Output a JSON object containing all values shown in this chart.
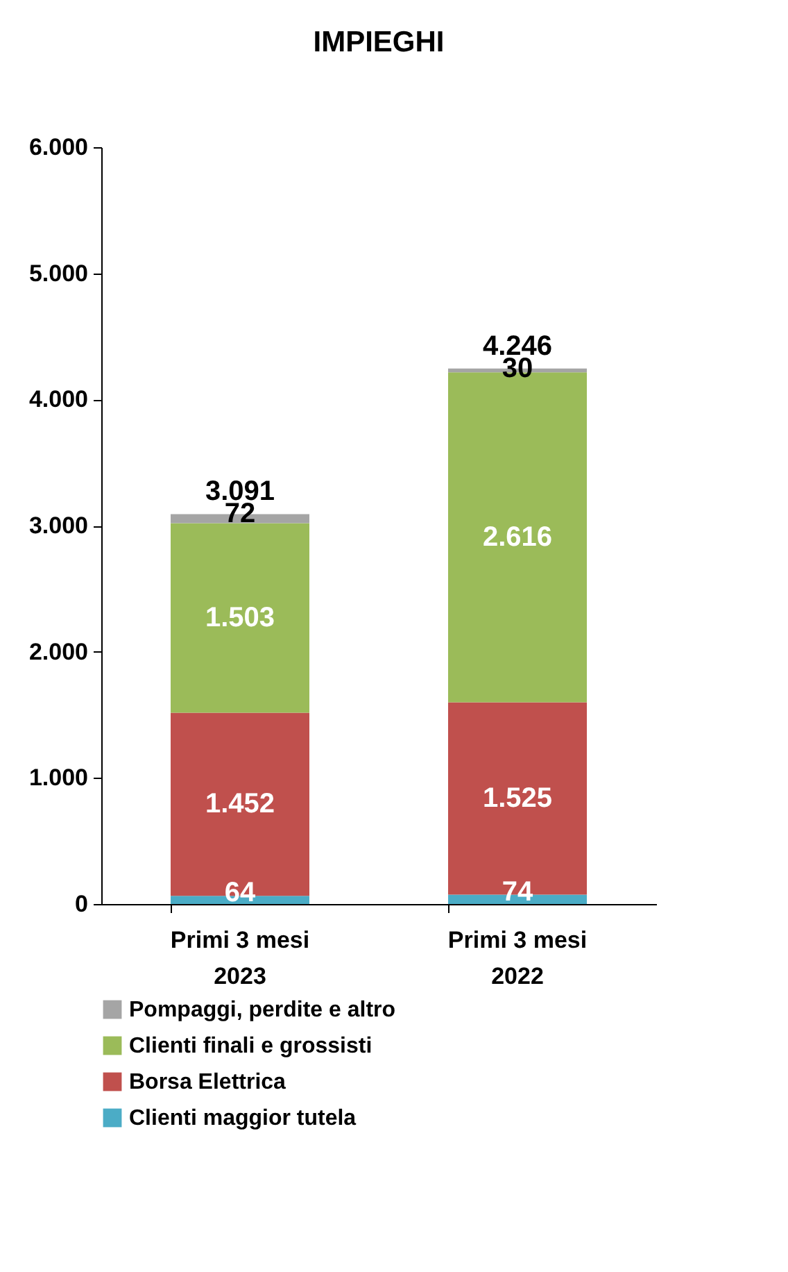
{
  "chart_data": {
    "type": "bar",
    "title": "IMPIEGHI",
    "stacked": true,
    "categories": [
      "Primi 3 mesi\n2023",
      "Primi 3 mesi\n2022"
    ],
    "series": [
      {
        "name": "Clienti maggior tutela",
        "color": "#4bacc6",
        "values": [
          64,
          74
        ],
        "value_labels": [
          "64",
          "74"
        ]
      },
      {
        "name": "Borsa Elettrica",
        "color": "#c0504d",
        "values": [
          1452,
          1525
        ],
        "value_labels": [
          "1.452",
          "1.525"
        ]
      },
      {
        "name": "Clienti finali e grossisti",
        "color": "#9bbb59",
        "values": [
          1503,
          2616
        ],
        "value_labels": [
          "1.503",
          "2.616"
        ]
      },
      {
        "name": "Pompaggi, perdite e altro",
        "color": "#a5a5a5",
        "values": [
          72,
          30
        ],
        "value_labels": [
          "72",
          "30"
        ]
      }
    ],
    "totals": [
      "3.091",
      "4.246"
    ],
    "ylim": [
      0,
      6000
    ],
    "yticks": [
      0,
      {
        "value": 1000,
        "label": "1.000"
      },
      {
        "value": 2000,
        "label": "2.000"
      },
      {
        "value": 3000,
        "label": "3.000"
      },
      {
        "value": 4000,
        "label": "4.000"
      },
      {
        "value": 5000,
        "label": "5.000"
      },
      {
        "value": 6000,
        "label": "6.000"
      }
    ],
    "grid": false,
    "legend": "bottom"
  }
}
